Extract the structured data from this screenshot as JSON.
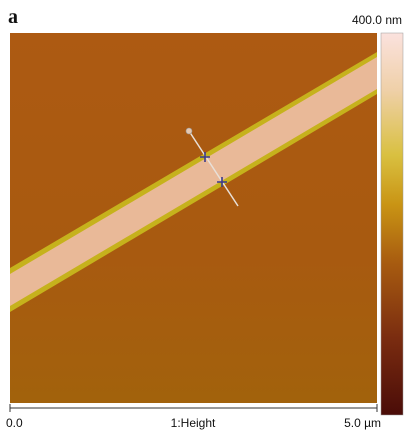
{
  "panel_label": "a",
  "colorbar": {
    "max_label": "400.0 nm"
  },
  "axis": {
    "start_label": "0.0",
    "channel_label": "1:Height",
    "end_label": "5.0 µm"
  }
}
